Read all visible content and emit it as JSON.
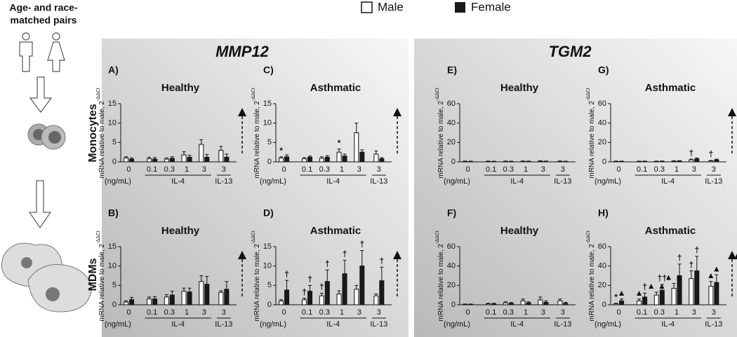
{
  "left": {
    "lines": [
      "Age- and race-",
      "matched pairs"
    ]
  },
  "sections": [
    "MMP12",
    "TGM2"
  ],
  "rows": [
    "Monocytes",
    "MDMs"
  ],
  "chart_data": [
    {
      "type": "bar",
      "panel": "A)",
      "title": "Healthy",
      "ylabel": "mRNA relative to male, 2",
      "ylabel_sup": "-ΔΔCt",
      "categories": [
        "0",
        "0.1",
        "0.3",
        "1",
        "3",
        "3"
      ],
      "x_unit": "(ng/mL)",
      "groups": [
        {
          "label": "IL-4",
          "categories": [
            1,
            4
          ]
        },
        {
          "label": "IL-13",
          "categories": [
            5,
            5
          ]
        }
      ],
      "ylim": [
        0,
        15
      ],
      "yticks": [
        0,
        5,
        10,
        15
      ],
      "series": [
        {
          "name": "Male",
          "color": "#ffffff",
          "values": [
            1,
            0.8,
            0.7,
            1.8,
            4.5,
            3
          ],
          "errors": [
            0.3,
            0.4,
            0.3,
            0.8,
            1.2,
            1
          ]
        },
        {
          "name": "Female",
          "color": "#1a1a1a",
          "values": [
            0.7,
            0.7,
            0.9,
            1.2,
            1.2,
            1.2
          ],
          "errors": [
            0.3,
            0.4,
            0.4,
            0.5,
            0.7,
            0.8
          ]
        }
      ],
      "annotations": []
    },
    {
      "type": "bar",
      "panel": "C)",
      "title": "Asthmatic",
      "ylabel": "mRNA relative to male, 2",
      "ylabel_sup": "-ΔΔCt",
      "categories": [
        "0",
        "0.1",
        "0.3",
        "1",
        "3",
        "3"
      ],
      "x_unit": "(ng/mL)",
      "groups": [
        {
          "label": "IL-4",
          "categories": [
            1,
            4
          ]
        },
        {
          "label": "IL-13",
          "categories": [
            5,
            5
          ]
        }
      ],
      "ylim": [
        0,
        15
      ],
      "yticks": [
        0,
        5,
        10,
        15
      ],
      "series": [
        {
          "name": "Male",
          "color": "#ffffff",
          "values": [
            1,
            0.8,
            0.9,
            2.5,
            7.5,
            2
          ],
          "errors": [
            0.3,
            0.3,
            0.4,
            0.8,
            2.5,
            0.8
          ]
        },
        {
          "name": "Female",
          "color": "#1a1a1a",
          "values": [
            1.3,
            1.2,
            1.2,
            1.5,
            2.5,
            0.8
          ],
          "errors": [
            0.5,
            0.3,
            0.4,
            0.5,
            0.6,
            0.3
          ]
        }
      ],
      "annotations": [
        {
          "label": "*",
          "category": 0,
          "series": 0
        },
        {
          "label": "*",
          "category": 3,
          "series": 0
        }
      ]
    },
    {
      "type": "bar",
      "panel": "E)",
      "title": "Healthy",
      "ylabel": "mRNA relative to male, 2",
      "ylabel_sup": "-ΔΔCt",
      "categories": [
        "0",
        "0.1",
        "0.3",
        "1",
        "3",
        "3"
      ],
      "x_unit": "(ng/mL)",
      "groups": [
        {
          "label": "IL-4",
          "categories": [
            1,
            4
          ]
        },
        {
          "label": "IL-13",
          "categories": [
            5,
            5
          ]
        }
      ],
      "ylim": [
        0,
        60
      ],
      "yticks": [
        0,
        20,
        40,
        60
      ],
      "series": [
        {
          "name": "Male",
          "color": "#ffffff",
          "values": [
            0.5,
            0.5,
            0.5,
            0.6,
            0.7,
            0.6
          ],
          "errors": [
            0.3,
            0.3,
            0.3,
            0.3,
            0.4,
            0.3
          ]
        },
        {
          "name": "Female",
          "color": "#1a1a1a",
          "values": [
            0.4,
            0.4,
            0.4,
            0.5,
            0.5,
            0.4
          ],
          "errors": [
            0.3,
            0.3,
            0.3,
            0.3,
            0.3,
            0.3
          ]
        }
      ],
      "annotations": []
    },
    {
      "type": "bar",
      "panel": "G)",
      "title": "Asthmatic",
      "ylabel": "mRNA relative to male, 2",
      "ylabel_sup": "-ΔΔCt",
      "categories": [
        "0",
        "0.1",
        "0.3",
        "1",
        "3",
        "3"
      ],
      "x_unit": "(ng/mL)",
      "groups": [
        {
          "label": "IL-4",
          "categories": [
            1,
            4
          ]
        },
        {
          "label": "IL-13",
          "categories": [
            5,
            5
          ]
        }
      ],
      "ylim": [
        0,
        60
      ],
      "yticks": [
        0,
        20,
        40,
        60
      ],
      "series": [
        {
          "name": "Male",
          "color": "#ffffff",
          "values": [
            0.5,
            0.5,
            0.5,
            0.7,
            2,
            1
          ],
          "errors": [
            0.3,
            0.3,
            0.3,
            0.4,
            0.8,
            0.5
          ]
        },
        {
          "name": "Female",
          "color": "#1a1a1a",
          "values": [
            0.5,
            0.5,
            0.6,
            0.8,
            3,
            2
          ],
          "errors": [
            0.3,
            0.3,
            0.3,
            0.4,
            1,
            0.8
          ]
        }
      ],
      "annotations": [
        {
          "label": "†",
          "category": 4,
          "series": 0
        },
        {
          "label": "†",
          "category": 5,
          "series": 0
        }
      ]
    },
    {
      "type": "bar",
      "panel": "B)",
      "title": "Healthy",
      "ylabel": "mRNA relative to male, 2",
      "ylabel_sup": "-ΔΔCt",
      "categories": [
        "0",
        "0.1",
        "0.3",
        "1",
        "3",
        "3"
      ],
      "x_unit": "(ng/mL)",
      "groups": [
        {
          "label": "IL-4",
          "categories": [
            1,
            4
          ]
        },
        {
          "label": "IL-13",
          "categories": [
            5,
            5
          ]
        }
      ],
      "ylim": [
        0,
        15
      ],
      "yticks": [
        0,
        5,
        10,
        15
      ],
      "series": [
        {
          "name": "Male",
          "color": "#ffffff",
          "values": [
            0.7,
            1.5,
            2,
            3.5,
            6,
            3.2
          ],
          "errors": [
            0.3,
            0.5,
            0.6,
            0.8,
            1.5,
            0.4
          ]
        },
        {
          "name": "Female",
          "color": "#1a1a1a",
          "values": [
            1.3,
            1.5,
            2.5,
            3.3,
            5.3,
            4
          ],
          "errors": [
            0.6,
            0.6,
            1,
            1,
            2,
            2
          ]
        }
      ],
      "annotations": []
    },
    {
      "type": "bar",
      "panel": "D)",
      "title": "Asthmatic",
      "ylabel": "mRNA relative to male, 2",
      "ylabel_sup": "-ΔΔCt",
      "categories": [
        "0",
        "0.1",
        "0.3",
        "1",
        "3",
        "3"
      ],
      "x_unit": "(ng/mL)",
      "groups": [
        {
          "label": "IL-4",
          "categories": [
            1,
            4
          ]
        },
        {
          "label": "IL-13",
          "categories": [
            5,
            5
          ]
        }
      ],
      "ylim": [
        0,
        15
      ],
      "yticks": [
        0,
        5,
        10,
        15
      ],
      "series": [
        {
          "name": "Male",
          "color": "#ffffff",
          "values": [
            1,
            1.3,
            2.3,
            2.8,
            4,
            2.3
          ],
          "errors": [
            0.3,
            0.4,
            0.7,
            0.8,
            1,
            0.5
          ]
        },
        {
          "name": "Female",
          "color": "#1a1a1a",
          "values": [
            3.8,
            3.5,
            6,
            8,
            10,
            6.2
          ],
          "errors": [
            2.5,
            1.5,
            3,
            3.5,
            4,
            3.5
          ]
        }
      ],
      "annotations": [
        {
          "label": "†",
          "category": 0,
          "series": 1
        },
        {
          "label": "†",
          "category": 1,
          "series": 0
        },
        {
          "label": "†",
          "category": 1,
          "series": 1
        },
        {
          "label": "†",
          "category": 2,
          "series": 0
        },
        {
          "label": "†",
          "category": 2,
          "series": 1
        },
        {
          "label": "†",
          "category": 3,
          "series": 1
        },
        {
          "label": "†",
          "category": 4,
          "series": 1
        },
        {
          "label": "†",
          "category": 5,
          "series": 1
        }
      ]
    },
    {
      "type": "bar",
      "panel": "F)",
      "title": "Healthy",
      "ylabel": "mRNA relative to male, 2",
      "ylabel_sup": "-ΔΔCt",
      "categories": [
        "0",
        "0.1",
        "0.3",
        "1",
        "3",
        "3"
      ],
      "x_unit": "(ng/mL)",
      "groups": [
        {
          "label": "IL-4",
          "categories": [
            1,
            4
          ]
        },
        {
          "label": "IL-13",
          "categories": [
            5,
            5
          ]
        }
      ],
      "ylim": [
        0,
        60
      ],
      "yticks": [
        0,
        20,
        40,
        60
      ],
      "series": [
        {
          "name": "Male",
          "color": "#ffffff",
          "values": [
            0.5,
            1,
            2,
            4,
            5,
            4
          ],
          "errors": [
            0.3,
            0.5,
            1,
            2,
            3,
            2
          ]
        },
        {
          "name": "Female",
          "color": "#1a1a1a",
          "values": [
            0.5,
            1,
            1.5,
            2,
            2.5,
            1.5
          ],
          "errors": [
            0.3,
            0.5,
            0.8,
            1,
            1.5,
            1
          ]
        }
      ],
      "annotations": []
    },
    {
      "type": "bar",
      "panel": "H)",
      "title": "Asthmatic",
      "ylabel": "mRNA relative to male, 2",
      "ylabel_sup": "-ΔΔCt",
      "categories": [
        "0",
        "0.1",
        "0.3",
        "1",
        "3",
        "3"
      ],
      "x_unit": "(ng/mL)",
      "groups": [
        {
          "label": "IL-4",
          "categories": [
            1,
            4
          ]
        },
        {
          "label": "IL-13",
          "categories": [
            5,
            5
          ]
        }
      ],
      "ylim": [
        0,
        60
      ],
      "yticks": [
        0,
        20,
        40,
        60
      ],
      "series": [
        {
          "name": "Male",
          "color": "#ffffff",
          "values": [
            1,
            4,
            10,
            17,
            27,
            19
          ],
          "errors": [
            0.5,
            2,
            3,
            5,
            8,
            5
          ]
        },
        {
          "name": "Female",
          "color": "#1a1a1a",
          "values": [
            4,
            8,
            15,
            30,
            35,
            23
          ],
          "errors": [
            2,
            4,
            6,
            12,
            15,
            8
          ]
        }
      ],
      "annotations": [
        {
          "label": "*",
          "category": 0,
          "series": 0
        },
        {
          "label": "▲",
          "category": 0,
          "series": 1
        },
        {
          "label": "▲",
          "category": 1,
          "series": 0
        },
        {
          "label": "†",
          "category": 1,
          "series": 1
        },
        {
          "label": "▲ ▲",
          "category": 2,
          "series": 0
        },
        {
          "label": "††",
          "category": 2,
          "series": 1
        },
        {
          "label": "▲ ▲",
          "category": 3,
          "series": 0
        },
        {
          "label": "†",
          "category": 3,
          "series": 1
        },
        {
          "label": "†",
          "category": 4,
          "series": 0
        },
        {
          "label": "†",
          "category": 4,
          "series": 1
        },
        {
          "label": "▲",
          "category": 5,
          "series": 0
        },
        {
          "label": "▲",
          "category": 5,
          "series": 1
        }
      ]
    }
  ]
}
